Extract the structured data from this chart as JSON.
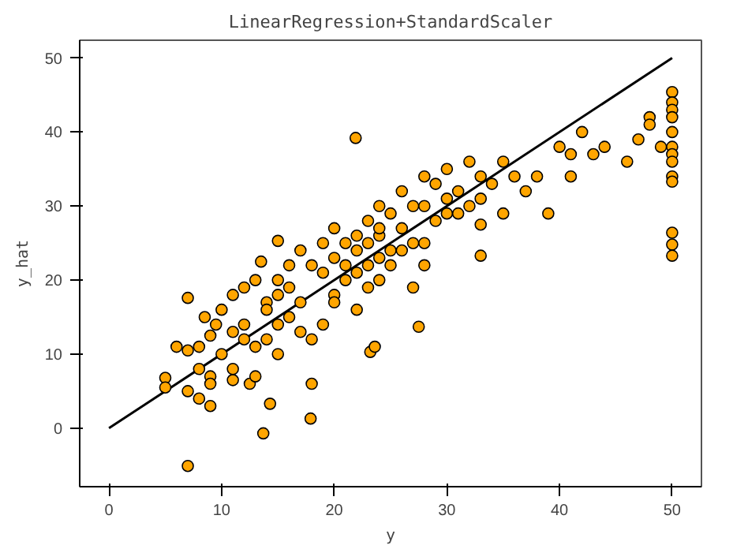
{
  "chart_data": {
    "type": "scatter",
    "title": "LinearRegression+StandardScaler",
    "xlabel": "y",
    "ylabel": "y_hat",
    "xlim": [
      -2.6,
      52.6
    ],
    "ylim": [
      -7.9,
      52.4
    ],
    "xticks": [
      0,
      10,
      20,
      30,
      40,
      50
    ],
    "yticks": [
      0,
      10,
      20,
      30,
      40,
      50
    ],
    "grid": false,
    "series": [
      {
        "type": "line",
        "color": "#000000",
        "marker": "none",
        "line_style": "solid",
        "x": [
          0,
          50
        ],
        "values": [
          0,
          50
        ]
      },
      {
        "color": "#ffa500",
        "marker": "circle",
        "x": [
          5,
          5,
          6,
          7,
          7,
          7,
          7,
          8,
          8,
          8,
          8.5,
          9,
          9,
          9,
          9,
          9.5,
          10,
          10,
          11,
          11,
          11,
          11,
          12,
          12,
          12,
          12.5,
          13,
          13,
          13,
          13.7,
          14.3,
          13.5,
          14,
          14,
          14,
          15,
          15,
          15,
          15,
          15,
          16,
          16,
          16,
          17,
          17,
          17,
          18,
          17.9,
          18,
          18,
          19,
          19,
          19,
          20,
          20,
          20,
          20,
          21,
          21,
          21,
          22,
          22,
          21.9,
          22,
          22,
          23,
          23,
          23,
          23,
          23.2,
          23.6,
          24,
          24,
          24,
          24,
          24,
          25,
          25,
          25,
          26,
          26,
          26,
          27,
          27,
          27,
          27.5,
          28,
          28,
          28,
          28,
          29,
          29,
          30,
          30,
          30,
          31,
          31,
          32,
          32,
          33,
          33,
          33,
          33,
          34,
          35,
          35,
          36,
          37,
          38,
          39,
          40,
          41,
          41,
          42,
          43,
          44,
          46,
          47,
          48,
          48,
          49,
          50,
          50,
          50,
          50,
          50,
          50,
          50,
          50,
          50,
          50,
          50,
          50,
          50
        ],
        "values": [
          6.8,
          5.5,
          11,
          10.5,
          5,
          17.6,
          -5.1,
          11,
          8,
          4,
          15,
          12.5,
          7,
          6,
          3,
          14,
          10,
          16,
          6.5,
          8,
          18,
          13,
          19,
          12,
          14,
          6,
          11,
          7,
          20,
          -0.7,
          3.3,
          22.5,
          17,
          12,
          16,
          25.3,
          20,
          18,
          14,
          10,
          15,
          19,
          22,
          17,
          13,
          24,
          6,
          1.3,
          12,
          22,
          14,
          25,
          21,
          18,
          23,
          17,
          27,
          22,
          20,
          25,
          21,
          26,
          39.2,
          16,
          24,
          28,
          22,
          25,
          19,
          10.3,
          11,
          30,
          26,
          23,
          20,
          27,
          24,
          29,
          22,
          27,
          32,
          24,
          19,
          30,
          25,
          13.7,
          34,
          30,
          22,
          25,
          33,
          28,
          35,
          31,
          29,
          32,
          29,
          36,
          30,
          34,
          31,
          27.5,
          23.3,
          33,
          36,
          29,
          34,
          32,
          34,
          29,
          38,
          37,
          34,
          40,
          37,
          38,
          36,
          39,
          42,
          41,
          38,
          45.4,
          44,
          43,
          42,
          40,
          38,
          37,
          36,
          34,
          33.3,
          26.4,
          24.8,
          23.3
        ]
      }
    ]
  }
}
